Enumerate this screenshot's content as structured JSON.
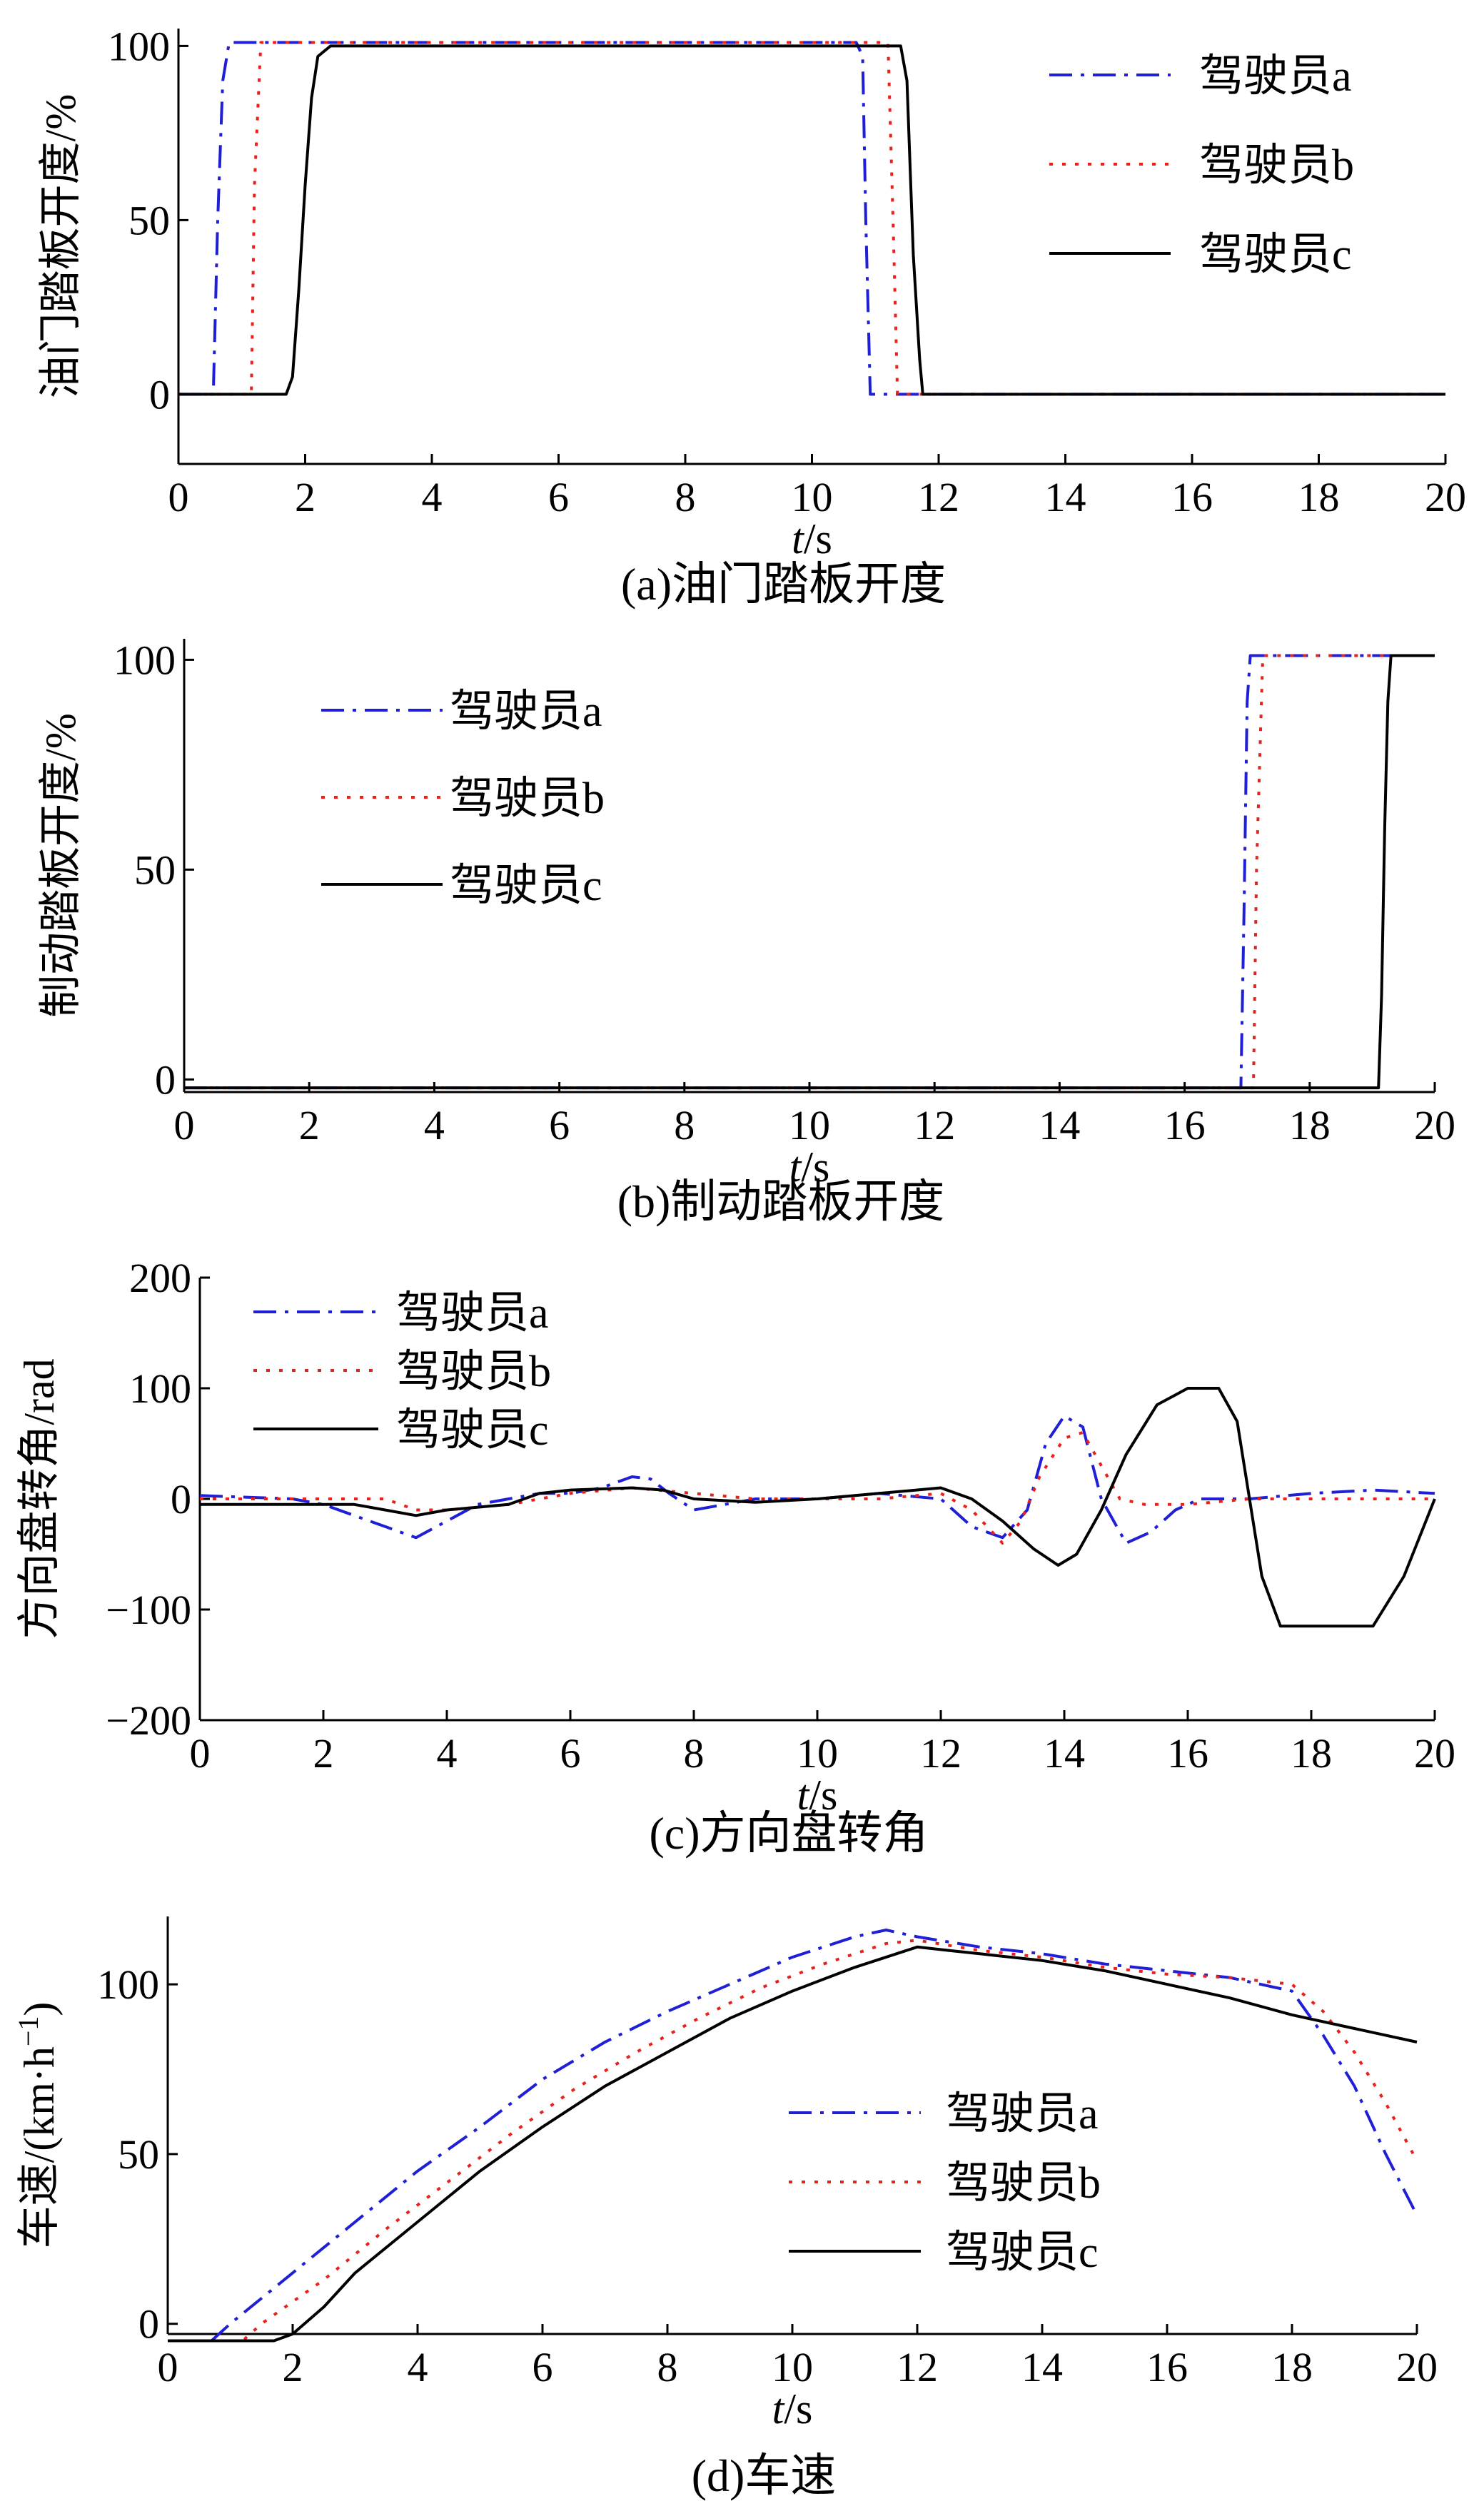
{
  "figure": {
    "colors": {
      "a": "#1f1fd6",
      "b": "#e8211d",
      "c": "#000000"
    }
  },
  "chart_data": [
    {
      "type": "line",
      "caption": "(a)油门踏板开度",
      "xlabel_italic": "t",
      "xlabel_unit": "/s",
      "ylabel": "油门踏板开度/%",
      "xlim": [
        0,
        20
      ],
      "ylim": [
        -20,
        105
      ],
      "xticks": [
        0,
        2,
        4,
        6,
        8,
        10,
        12,
        14,
        16,
        18,
        20
      ],
      "yticks": [
        0,
        50,
        100
      ],
      "legend_position": "top-right",
      "series": [
        {
          "name": "驾驶员a",
          "style": "dashdot",
          "color": "#1f1fd6",
          "points": [
            [
              0,
              0
            ],
            [
              0.55,
              0
            ],
            [
              0.62,
              50
            ],
            [
              0.7,
              90
            ],
            [
              0.8,
              101
            ],
            [
              10.7,
              101
            ],
            [
              10.8,
              97
            ],
            [
              10.85,
              50
            ],
            [
              10.92,
              0
            ],
            [
              20,
              0
            ]
          ]
        },
        {
          "name": "驾驶员b",
          "style": "dotted",
          "color": "#e8211d",
          "points": [
            [
              0,
              0
            ],
            [
              1.15,
              0
            ],
            [
              1.2,
              60
            ],
            [
              1.3,
              101
            ],
            [
              11.2,
              101
            ],
            [
              11.28,
              50
            ],
            [
              11.35,
              0
            ],
            [
              20,
              0
            ]
          ]
        },
        {
          "name": "驾驶员c",
          "style": "solid",
          "color": "#000000",
          "points": [
            [
              0,
              0
            ],
            [
              1.7,
              0
            ],
            [
              1.8,
              5
            ],
            [
              1.9,
              30
            ],
            [
              2.0,
              60
            ],
            [
              2.1,
              85
            ],
            [
              2.2,
              97
            ],
            [
              2.4,
              100
            ],
            [
              11.4,
              100
            ],
            [
              11.5,
              90
            ],
            [
              11.6,
              40
            ],
            [
              11.7,
              10
            ],
            [
              11.75,
              0
            ],
            [
              20,
              0
            ]
          ]
        }
      ]
    },
    {
      "type": "line",
      "caption": "(b)制动踏板开度",
      "xlabel_italic": "t",
      "xlabel_unit": "/s",
      "ylabel": "制动踏板开度/%",
      "xlim": [
        0,
        20
      ],
      "ylim": [
        -3,
        105
      ],
      "xticks": [
        0,
        2,
        4,
        6,
        8,
        10,
        12,
        14,
        16,
        18,
        20
      ],
      "yticks": [
        0,
        50,
        100
      ],
      "legend_position": "top-left",
      "series": [
        {
          "name": "驾驶员a",
          "style": "dashdot",
          "color": "#1f1fd6",
          "points": [
            [
              0,
              -2
            ],
            [
              16.9,
              -2
            ],
            [
              16.95,
              40
            ],
            [
              17.0,
              90
            ],
            [
              17.05,
              101
            ],
            [
              20,
              101
            ]
          ]
        },
        {
          "name": "驾驶员b",
          "style": "dotted",
          "color": "#e8211d",
          "points": [
            [
              0,
              -2
            ],
            [
              17.1,
              -2
            ],
            [
              17.15,
              50
            ],
            [
              17.25,
              101
            ],
            [
              20,
              101
            ]
          ]
        },
        {
          "name": "驾驶员c",
          "style": "solid",
          "color": "#000000",
          "points": [
            [
              0,
              -2
            ],
            [
              19.1,
              -2
            ],
            [
              19.15,
              20
            ],
            [
              19.2,
              60
            ],
            [
              19.25,
              90
            ],
            [
              19.3,
              101
            ],
            [
              20,
              101
            ]
          ]
        }
      ]
    },
    {
      "type": "line",
      "caption": "(c)方向盘转角",
      "xlabel_italic": "t",
      "xlabel_unit": "/s",
      "ylabel": "方向盘转角/rad",
      "xlim": [
        0,
        20
      ],
      "ylim": [
        -200,
        200
      ],
      "xticks": [
        0,
        2,
        4,
        6,
        8,
        10,
        12,
        14,
        16,
        18,
        20
      ],
      "yticks": [
        -200,
        -100,
        0,
        100,
        200
      ],
      "legend_position": "top-left",
      "series": [
        {
          "name": "驾驶员a",
          "style": "dashdot",
          "color": "#1f1fd6",
          "points": [
            [
              0,
              3
            ],
            [
              1.5,
              0
            ],
            [
              2.0,
              -5
            ],
            [
              2.5,
              -15
            ],
            [
              3.0,
              -25
            ],
            [
              3.5,
              -35
            ],
            [
              4.0,
              -20
            ],
            [
              4.5,
              -5
            ],
            [
              5.0,
              0
            ],
            [
              5.5,
              5
            ],
            [
              6.0,
              5
            ],
            [
              6.5,
              10
            ],
            [
              7.0,
              20
            ],
            [
              7.3,
              18
            ],
            [
              7.6,
              5
            ],
            [
              8.0,
              -10
            ],
            [
              8.5,
              -5
            ],
            [
              9.0,
              0
            ],
            [
              10.0,
              0
            ],
            [
              11.0,
              5
            ],
            [
              12.0,
              0
            ],
            [
              12.5,
              -25
            ],
            [
              13.0,
              -35
            ],
            [
              13.4,
              -10
            ],
            [
              13.7,
              50
            ],
            [
              14.0,
              75
            ],
            [
              14.3,
              65
            ],
            [
              14.6,
              0
            ],
            [
              15.0,
              -40
            ],
            [
              15.4,
              -30
            ],
            [
              15.8,
              -10
            ],
            [
              16.2,
              0
            ],
            [
              17.0,
              0
            ],
            [
              18.0,
              5
            ],
            [
              19.0,
              8
            ],
            [
              20.0,
              5
            ]
          ]
        },
        {
          "name": "驾驶员b",
          "style": "dotted",
          "color": "#e8211d",
          "points": [
            [
              0,
              0
            ],
            [
              3.0,
              0
            ],
            [
              3.5,
              -10
            ],
            [
              4.0,
              -10
            ],
            [
              5.0,
              -5
            ],
            [
              6.0,
              5
            ],
            [
              7.0,
              10
            ],
            [
              8.0,
              5
            ],
            [
              9.0,
              0
            ],
            [
              10.0,
              0
            ],
            [
              11.0,
              0
            ],
            [
              12.0,
              5
            ],
            [
              12.5,
              -10
            ],
            [
              13.0,
              -40
            ],
            [
              13.3,
              -20
            ],
            [
              13.6,
              20
            ],
            [
              14.0,
              55
            ],
            [
              14.3,
              60
            ],
            [
              14.6,
              30
            ],
            [
              14.9,
              0
            ],
            [
              15.3,
              -5
            ],
            [
              16.0,
              -5
            ],
            [
              17.0,
              0
            ],
            [
              18.0,
              0
            ],
            [
              19.0,
              0
            ],
            [
              20.0,
              0
            ]
          ]
        },
        {
          "name": "驾驶员c",
          "style": "solid",
          "color": "#000000",
          "points": [
            [
              0,
              -5
            ],
            [
              2.5,
              -5
            ],
            [
              3.0,
              -10
            ],
            [
              3.5,
              -15
            ],
            [
              4.0,
              -10
            ],
            [
              5.0,
              -5
            ],
            [
              5.5,
              5
            ],
            [
              6.0,
              8
            ],
            [
              7.0,
              10
            ],
            [
              7.5,
              8
            ],
            [
              8.0,
              0
            ],
            [
              9.0,
              -3
            ],
            [
              10.0,
              0
            ],
            [
              11.0,
              5
            ],
            [
              12.0,
              10
            ],
            [
              12.5,
              0
            ],
            [
              13.0,
              -20
            ],
            [
              13.5,
              -45
            ],
            [
              13.9,
              -60
            ],
            [
              14.2,
              -50
            ],
            [
              14.6,
              -10
            ],
            [
              15.0,
              40
            ],
            [
              15.5,
              85
            ],
            [
              16.0,
              100
            ],
            [
              16.5,
              100
            ],
            [
              16.8,
              70
            ],
            [
              17.0,
              0
            ],
            [
              17.2,
              -70
            ],
            [
              17.5,
              -115
            ],
            [
              18.0,
              -115
            ],
            [
              19.0,
              -115
            ],
            [
              19.5,
              -70
            ],
            [
              20.0,
              0
            ]
          ]
        }
      ]
    },
    {
      "type": "line",
      "caption": "(d)车速",
      "xlabel_italic": "t",
      "xlabel_unit": "/s",
      "ylabel": "车速/(km·h",
      "ylabel_sup": "−1",
      "ylabel_end": ")",
      "xlim": [
        0,
        20
      ],
      "ylim": [
        -3,
        120
      ],
      "xticks": [
        0,
        2,
        4,
        6,
        8,
        10,
        12,
        14,
        16,
        18,
        20
      ],
      "yticks": [
        0,
        50,
        100
      ],
      "legend_position": "center-right",
      "series": [
        {
          "name": "驾驶员a",
          "style": "dashdot",
          "color": "#1f1fd6",
          "points": [
            [
              0,
              -5
            ],
            [
              0.7,
              -5
            ],
            [
              1.0,
              0
            ],
            [
              2.0,
              15
            ],
            [
              3.0,
              30
            ],
            [
              4.0,
              45
            ],
            [
              5.0,
              58
            ],
            [
              6.0,
              72
            ],
            [
              7.0,
              83
            ],
            [
              8.0,
              92
            ],
            [
              9.0,
              100
            ],
            [
              10.0,
              108
            ],
            [
              11.0,
              114
            ],
            [
              11.5,
              116
            ],
            [
              12.0,
              114
            ],
            [
              13.0,
              111
            ],
            [
              14.0,
              109
            ],
            [
              15.0,
              106
            ],
            [
              16.0,
              104
            ],
            [
              17.0,
              102
            ],
            [
              18.0,
              98
            ],
            [
              18.5,
              85
            ],
            [
              19.0,
              70
            ],
            [
              19.5,
              50
            ],
            [
              20.0,
              32
            ]
          ]
        },
        {
          "name": "驾驶员b",
          "style": "dotted",
          "color": "#e8211d",
          "points": [
            [
              0,
              -5
            ],
            [
              1.2,
              -5
            ],
            [
              1.5,
              0
            ],
            [
              2.5,
              13
            ],
            [
              3.5,
              28
            ],
            [
              4.5,
              42
            ],
            [
              5.5,
              56
            ],
            [
              6.5,
              69
            ],
            [
              7.5,
              80
            ],
            [
              8.5,
              90
            ],
            [
              9.5,
              99
            ],
            [
              10.5,
              106
            ],
            [
              11.5,
              112
            ],
            [
              12.0,
              113
            ],
            [
              13.0,
              110
            ],
            [
              14.0,
              108
            ],
            [
              15.0,
              105
            ],
            [
              16.0,
              103
            ],
            [
              17.0,
              102
            ],
            [
              18.0,
              100
            ],
            [
              18.5,
              92
            ],
            [
              19.0,
              80
            ],
            [
              19.5,
              65
            ],
            [
              20.0,
              48
            ]
          ]
        },
        {
          "name": "驾驶员c",
          "style": "solid",
          "color": "#000000",
          "points": [
            [
              0,
              -5
            ],
            [
              1.7,
              -5
            ],
            [
              2.0,
              -3
            ],
            [
              2.5,
              5
            ],
            [
              3.0,
              15
            ],
            [
              4.0,
              30
            ],
            [
              5.0,
              45
            ],
            [
              6.0,
              58
            ],
            [
              7.0,
              70
            ],
            [
              8.0,
              80
            ],
            [
              9.0,
              90
            ],
            [
              10.0,
              98
            ],
            [
              11.0,
              105
            ],
            [
              12.0,
              111
            ],
            [
              12.5,
              110
            ],
            [
              13.0,
              109
            ],
            [
              14.0,
              107
            ],
            [
              15.0,
              104
            ],
            [
              16.0,
              100
            ],
            [
              17.0,
              96
            ],
            [
              18.0,
              91
            ],
            [
              19.0,
              87
            ],
            [
              20.0,
              83
            ]
          ]
        }
      ]
    }
  ]
}
